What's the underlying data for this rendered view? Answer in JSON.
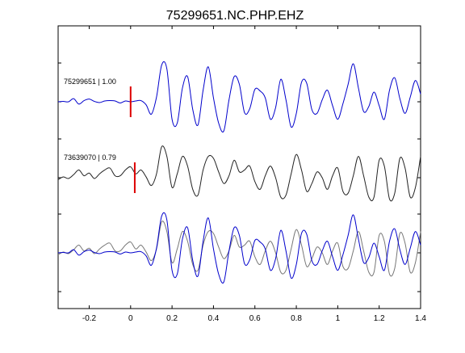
{
  "chart_data": {
    "type": "line",
    "title": "75299651.NC.PHP.EHZ",
    "xlabel": "",
    "ylabel": "",
    "xlim": [
      -0.35,
      1.4
    ],
    "xticks": [
      -0.2,
      0,
      0.2,
      0.4,
      0.6,
      0.8,
      1,
      1.2,
      1.4
    ],
    "xtick_labels": [
      "-0.2",
      "0",
      "0.2",
      "0.4",
      "0.6",
      "0.8",
      "1",
      "1.2",
      "1.4"
    ],
    "grid": false,
    "colors": {
      "primary_trace": "#0000cc",
      "similar_trace": "#222222",
      "overlay_similar_trace": "#777777",
      "pick_marker": "#dd0000"
    },
    "traces": [
      {
        "name": "75299651 | 1.00",
        "event_id": "75299651",
        "correlation": 1.0,
        "pick_time_s": 0.0,
        "panel": 0
      },
      {
        "name": "73639070 | 0.79",
        "event_id": "73639070",
        "correlation": 0.79,
        "pick_time_s": 0.02,
        "panel": 1
      }
    ],
    "panels": [
      {
        "label": "75299651 | 1.00",
        "show_label": true,
        "series": [
          "75299651"
        ]
      },
      {
        "label": "73639070 | 0.79",
        "show_label": true,
        "series": [
          "73639070"
        ]
      },
      {
        "label": "",
        "show_label": false,
        "series": [
          "73639070",
          "75299651"
        ]
      }
    ],
    "series": [
      {
        "id": "75299651",
        "x_start": -0.35,
        "x_step": 0.025,
        "values": [
          0,
          0.01,
          0,
          0.08,
          -0.06,
          0.03,
          0.07,
          0.01,
          -0.02,
          0.02,
          0.03,
          0.02,
          -0.03,
          0.02,
          0.0,
          0.02,
          0.03,
          -0.08,
          -0.32,
          0.12,
          0.95,
          0.85,
          -0.45,
          -0.55,
          0.35,
          0.65,
          -0.2,
          -0.6,
          0.3,
          0.9,
          0.1,
          -0.55,
          -0.75,
          0.05,
          0.65,
          0.45,
          -0.28,
          -0.18,
          0.32,
          0.28,
          0.1,
          -0.45,
          -0.15,
          0.58,
          0.05,
          -0.65,
          -0.3,
          0.5,
          0.48,
          -0.2,
          -0.3,
          0.05,
          0.3,
          -0.1,
          -0.45,
          -0.05,
          0.45,
          0.98,
          0.35,
          -0.25,
          -0.12,
          0.25,
          -0.1,
          -0.45,
          0.3,
          0.62,
          0.08,
          -0.3,
          0.12,
          0.55,
          0.2,
          -0.35,
          0.05
        ]
      },
      {
        "id": "73639070",
        "x_start": -0.35,
        "x_step": 0.025,
        "values": [
          -0.05,
          0.02,
          -0.02,
          0.08,
          0.2,
          0.05,
          0.12,
          -0.02,
          0.1,
          0.2,
          0.25,
          0.05,
          0.05,
          0.2,
          0.28,
          0.1,
          0.2,
          0.02,
          -0.2,
          0.1,
          0.8,
          0.55,
          -0.25,
          0.1,
          0.55,
          0.3,
          -0.3,
          -0.45,
          0.2,
          0.55,
          0.5,
          0.15,
          -0.15,
          0.05,
          0.45,
          0.15,
          0.2,
          0.3,
          -0.1,
          -0.3,
          0.05,
          0.3,
          0.0,
          -0.5,
          -0.45,
          0.1,
          0.6,
          0.2,
          -0.35,
          -0.15,
          0.15,
          0.0,
          -0.3,
          0.05,
          0.25,
          -0.35,
          -0.4,
          0.05,
          0.55,
          0.05,
          -0.5,
          -0.5,
          0.45,
          0.3,
          -0.55,
          -0.4,
          0.5,
          0.25,
          -0.5,
          -0.25,
          0.55,
          0.1,
          -0.3
        ]
      }
    ]
  }
}
